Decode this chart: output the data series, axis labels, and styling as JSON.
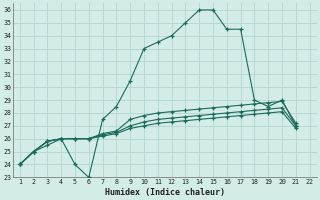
{
  "title": "",
  "xlabel": "Humidex (Indice chaleur)",
  "bg_color": "#d4ece8",
  "grid_color": "#b8d8d4",
  "line_color": "#1a6b5a",
  "xlim": [
    0.5,
    22.5
  ],
  "ylim": [
    23,
    36.5
  ],
  "xticks": [
    1,
    2,
    3,
    4,
    5,
    6,
    7,
    8,
    9,
    10,
    11,
    12,
    13,
    14,
    15,
    16,
    17,
    18,
    19,
    20,
    21,
    22
  ],
  "yticks": [
    23,
    24,
    25,
    26,
    27,
    28,
    29,
    30,
    31,
    32,
    33,
    34,
    35,
    36
  ],
  "series1": [
    24.0,
    25.0,
    25.5,
    26.0,
    24.0,
    23.0,
    27.5,
    28.5,
    30.5,
    33.0,
    33.5,
    34.0,
    35.0,
    36.0,
    36.0,
    34.5,
    34.5,
    29.0,
    28.5,
    29.0,
    27.0
  ],
  "series2": [
    24.0,
    25.0,
    25.8,
    26.0,
    26.0,
    26.0,
    26.4,
    26.6,
    27.5,
    27.8,
    28.0,
    28.1,
    28.2,
    28.3,
    28.4,
    28.5,
    28.6,
    28.7,
    28.8,
    28.9,
    27.2
  ],
  "series3": [
    24.0,
    25.0,
    25.8,
    26.0,
    26.0,
    26.0,
    26.3,
    26.5,
    27.0,
    27.3,
    27.5,
    27.6,
    27.7,
    27.8,
    27.9,
    28.0,
    28.1,
    28.2,
    28.3,
    28.4,
    27.0
  ],
  "series4": [
    24.0,
    25.0,
    25.8,
    26.0,
    26.0,
    26.0,
    26.2,
    26.4,
    26.8,
    27.0,
    27.2,
    27.3,
    27.4,
    27.5,
    27.6,
    27.7,
    27.8,
    27.9,
    28.0,
    28.1,
    26.8
  ],
  "x_start": 1
}
